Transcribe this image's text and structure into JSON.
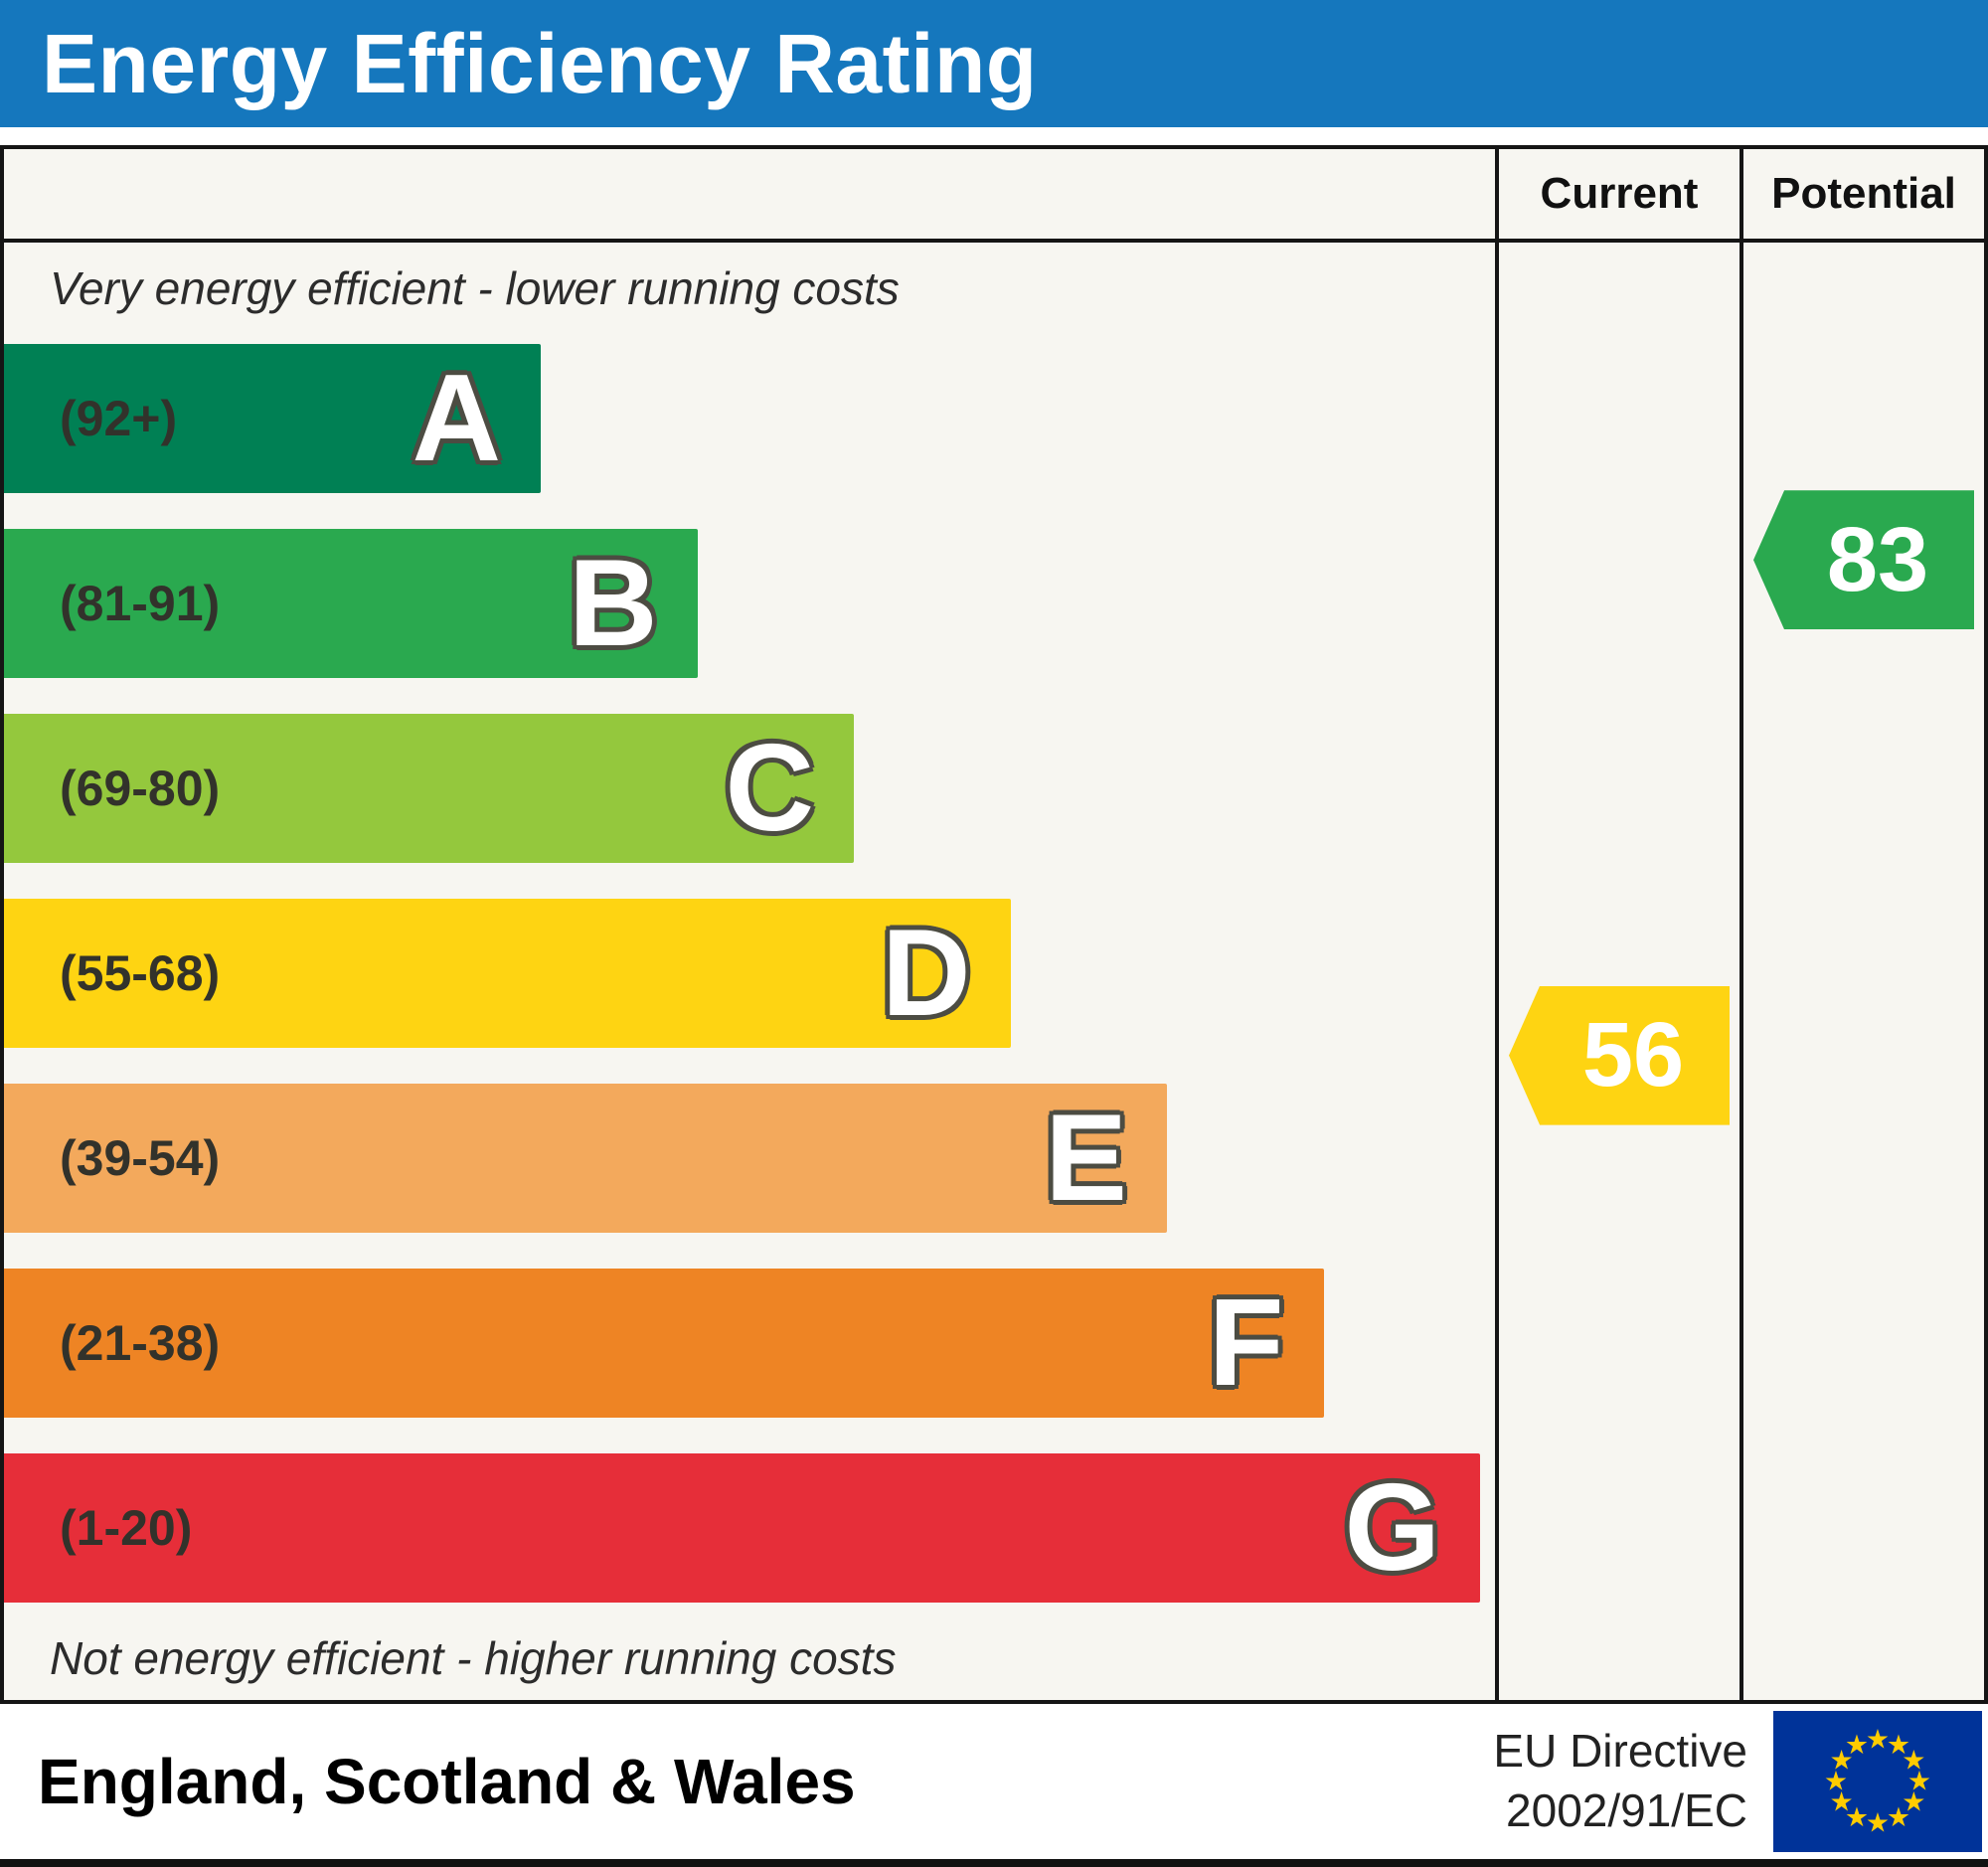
{
  "title": "Energy Efficiency Rating",
  "columns": {
    "current": "Current",
    "potential": "Potential"
  },
  "captions": {
    "top": "Very energy efficient - lower running costs",
    "bottom": "Not energy efficient - higher running costs"
  },
  "bands": [
    {
      "letter": "A",
      "range": "(92+)",
      "color": "#008054",
      "width_pct": 36
    },
    {
      "letter": "B",
      "range": "(81-91)",
      "color": "#2aa94f",
      "width_pct": 46.5
    },
    {
      "letter": "C",
      "range": "(69-80)",
      "color": "#94c83d",
      "width_pct": 57
    },
    {
      "letter": "D",
      "range": "(55-68)",
      "color": "#fed412",
      "width_pct": 67.5
    },
    {
      "letter": "E",
      "range": "(39-54)",
      "color": "#f3a95c",
      "width_pct": 78
    },
    {
      "letter": "F",
      "range": "(21-38)",
      "color": "#ee8424",
      "width_pct": 88.5
    },
    {
      "letter": "G",
      "range": "(1-20)",
      "color": "#e62e39",
      "width_pct": 99
    }
  ],
  "ratings": {
    "current": {
      "label": "Current",
      "value": "56",
      "color": "#fed412",
      "band": "D"
    },
    "potential": {
      "label": "Potential",
      "value": "83",
      "color": "#2aa94f",
      "band": "B"
    }
  },
  "footer": {
    "region": "England, Scotland & Wales",
    "directive_line1": "EU Directive",
    "directive_line2": "2002/91/EC"
  },
  "chart_data": {
    "type": "bar",
    "title": "Energy Efficiency Rating",
    "categories": [
      "A",
      "B",
      "C",
      "D",
      "E",
      "F",
      "G"
    ],
    "band_ranges": [
      "92+",
      "81-91",
      "69-80",
      "55-68",
      "39-54",
      "21-38",
      "1-20"
    ],
    "band_colors": [
      "#008054",
      "#2aa94f",
      "#94c83d",
      "#fed412",
      "#f3a95c",
      "#ee8424",
      "#e62e39"
    ],
    "bar_relative_widths_pct": [
      36,
      46.5,
      57,
      67.5,
      78,
      88.5,
      99
    ],
    "current_rating": 56,
    "current_band": "D",
    "potential_rating": 83,
    "potential_band": "B",
    "annotation_top": "Very energy efficient - lower running costs",
    "annotation_bottom": "Not energy efficient - higher running costs",
    "region": "England, Scotland & Wales",
    "directive": "EU Directive 2002/91/EC",
    "legend_position": "none",
    "grid": false
  }
}
